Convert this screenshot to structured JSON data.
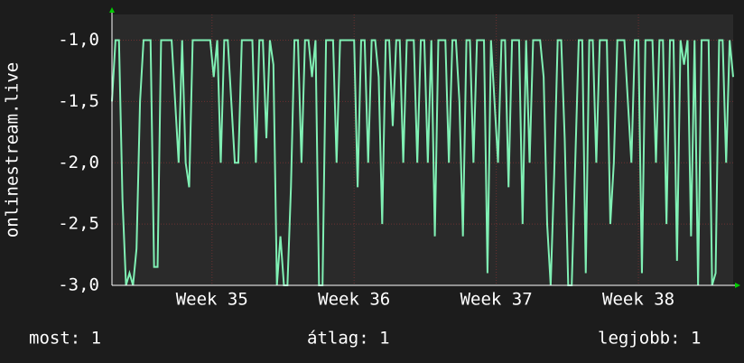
{
  "chart_data": {
    "type": "line",
    "y_label": "onlinestream.live",
    "series": [
      {
        "color": "#80f0b4",
        "values": [
          -1.5,
          -1,
          -1,
          -2.3,
          -3,
          -2.9,
          -3,
          -2.7,
          -1.5,
          -1,
          -1,
          -1,
          -2.85,
          -2.85,
          -1,
          -1,
          -1,
          -1,
          -1.5,
          -2,
          -1,
          -2,
          -2.2,
          -1,
          -1,
          -1,
          -1,
          -1,
          -1,
          -1.3,
          -1,
          -2,
          -1,
          -1,
          -1.5,
          -2,
          -2,
          -1,
          -1,
          -1,
          -1,
          -2,
          -1,
          -1,
          -1.8,
          -1,
          -1.2,
          -3,
          -2.6,
          -3,
          -3,
          -2.2,
          -1,
          -1,
          -2,
          -1,
          -1,
          -1.3,
          -1,
          -3,
          -3,
          -1,
          -1,
          -1,
          -2,
          -1,
          -1,
          -1,
          -1,
          -1,
          -2.2,
          -1,
          -1,
          -2,
          -1,
          -1,
          -1.3,
          -2.5,
          -1,
          -1,
          -1.7,
          -1,
          -1,
          -2,
          -1,
          -1,
          -1,
          -2,
          -1,
          -1,
          -2,
          -1,
          -2.6,
          -1,
          -1,
          -1,
          -2,
          -1,
          -1,
          -1.5,
          -2.6,
          -1,
          -1,
          -2,
          -1,
          -1,
          -1,
          -2.9,
          -1,
          -1.5,
          -2,
          -1,
          -1,
          -2.2,
          -1,
          -1,
          -1,
          -2.5,
          -1,
          -2,
          -1,
          -1,
          -1,
          -1.3,
          -2.5,
          -3,
          -2.1,
          -1,
          -1,
          -1.8,
          -3,
          -3,
          -2,
          -1,
          -1,
          -2.9,
          -1,
          -1,
          -2,
          -1,
          -1,
          -1,
          -2.5,
          -2,
          -1,
          -1,
          -1,
          -1.5,
          -2,
          -1,
          -1,
          -2.9,
          -1,
          -1,
          -1,
          -2,
          -1,
          -1,
          -2.5,
          -1,
          -1,
          -2.8,
          -1,
          -1.2,
          -1,
          -2.6,
          -1,
          -3,
          -1,
          -1,
          -1,
          -3,
          -2.9,
          -1,
          -1,
          -2,
          -1,
          -1.3
        ]
      }
    ],
    "xlim": [
      0,
      177
    ],
    "xticks": [
      {
        "value": 28.5,
        "label": "Week 35"
      },
      {
        "value": 69,
        "label": "Week 36"
      },
      {
        "value": 109.5,
        "label": "Week 37"
      },
      {
        "value": 150,
        "label": "Week 38"
      }
    ],
    "ylim": [
      -3,
      -0.79
    ],
    "yticks": [
      {
        "value": -3,
        "label": "-3,0"
      },
      {
        "value": -2.5,
        "label": "-2,5"
      },
      {
        "value": -2,
        "label": "-2,0"
      },
      {
        "value": -1.5,
        "label": "-1,5"
      },
      {
        "value": -1,
        "label": "-1,0"
      }
    ],
    "grid": true,
    "footer": {
      "current": "most: 1",
      "average": "átlag: 1",
      "best": "legjobb: 1"
    }
  }
}
